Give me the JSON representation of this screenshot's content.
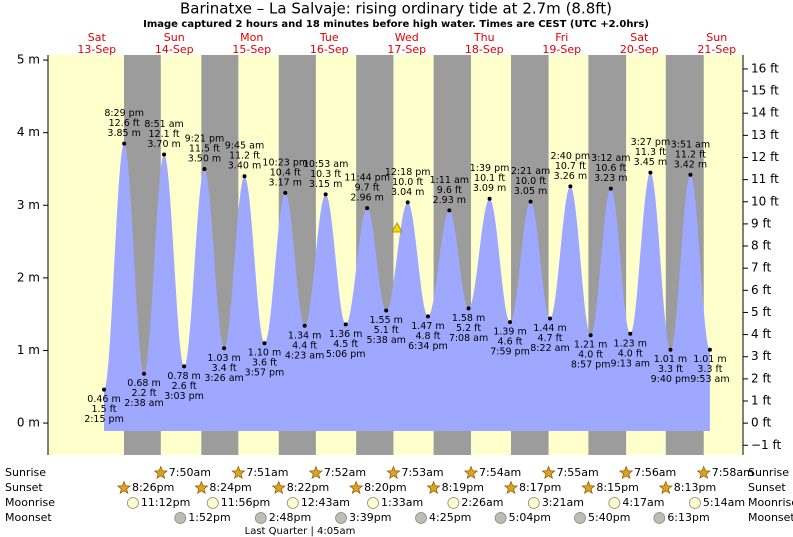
{
  "chart_data": {
    "type": "tide",
    "title": "Barinatxe – La Salvaje: rising  ordinary tide at 2.7m (8.8ft)",
    "subtitle": "Image captured 2 hours and 18 minutes before high water. Times are CEST (UTC +2.0hrs)",
    "ylim": [
      -0.44,
      5.07
    ],
    "yticks": [
      {
        "value": 0,
        "label": "0 m"
      },
      {
        "value": 1,
        "label": "1 m"
      },
      {
        "value": 2,
        "label": "2 m"
      },
      {
        "value": 3,
        "label": "3 m"
      },
      {
        "value": 4,
        "label": "4 m"
      },
      {
        "value": 5,
        "label": "5 m"
      }
    ],
    "y2lim": [
      -1.44,
      16.63
    ],
    "y2ticks": [
      {
        "value": -1,
        "label": "−1 ft"
      },
      {
        "value": 0,
        "label": "0 ft"
      },
      {
        "value": 1,
        "label": "1 ft"
      },
      {
        "value": 2,
        "label": "2 ft"
      },
      {
        "value": 3,
        "label": "3 ft"
      },
      {
        "value": 4,
        "label": "4 ft"
      },
      {
        "value": 5,
        "label": "5 ft"
      },
      {
        "value": 6,
        "label": "6 ft"
      },
      {
        "value": 7,
        "label": "7 ft"
      },
      {
        "value": 8,
        "label": "8 ft"
      },
      {
        "value": 9,
        "label": "9 ft"
      },
      {
        "value": 10,
        "label": "10 ft"
      },
      {
        "value": 11,
        "label": "11 ft"
      },
      {
        "value": 12,
        "label": "12 ft"
      },
      {
        "value": 13,
        "label": "13 ft"
      },
      {
        "value": 14,
        "label": "14 ft"
      },
      {
        "value": 15,
        "label": "15 ft"
      },
      {
        "value": 16,
        "label": "16 ft"
      }
    ],
    "row_labels": [
      "Sunrise",
      "Sunset",
      "Moonrise",
      "Moonset"
    ],
    "moon_phase": "Last Quarter | 4:05am",
    "colors": {
      "day": "#ffffcc",
      "night": "#9c9c9c",
      "tide": "#9ea8ff"
    },
    "days": [
      {
        "name": "Sat",
        "date": "13-Sep",
        "sunset": "8:26pm",
        "moonrise": "11:12pm",
        "tides": [
          {
            "time": "2:15 pm",
            "m": 0.46,
            "m_label": "0.46 m",
            "ft_label": "1.5 ft"
          },
          {
            "time": "8:29 pm",
            "m": 3.85,
            "m_label": "3.85 m",
            "ft_label": "12.6 ft"
          }
        ]
      },
      {
        "name": "Sun",
        "date": "14-Sep",
        "sunrise": "7:50am",
        "sunset": "8:24pm",
        "moonrise": "11:56pm",
        "moonset": "1:52pm",
        "tides": [
          {
            "time": "2:38 am",
            "m": 0.68,
            "m_label": "0.68 m",
            "ft_label": "2.2 ft"
          },
          {
            "time": "8:51 am",
            "m": 3.7,
            "m_label": "3.70 m",
            "ft_label": "12.1 ft"
          },
          {
            "time": "3:03 pm",
            "m": 0.78,
            "m_label": "0.78 m",
            "ft_label": "2.6 ft"
          },
          {
            "time": "9:21 pm",
            "m": 3.5,
            "m_label": "3.50 m",
            "ft_label": "11.5 ft"
          }
        ]
      },
      {
        "name": "Mon",
        "date": "15-Sep",
        "sunrise": "7:51am",
        "sunset": "8:22pm",
        "moonset": "2:48pm",
        "tides": [
          {
            "time": "3:26 am",
            "m": 1.03,
            "m_label": "1.03 m",
            "ft_label": "3.4 ft"
          },
          {
            "time": "9:45 am",
            "m": 3.4,
            "m_label": "3.40 m",
            "ft_label": "11.2 ft"
          },
          {
            "time": "3:57 pm",
            "m": 1.1,
            "m_label": "1.10 m",
            "ft_label": "3.6 ft"
          },
          {
            "time": "10:23 pm",
            "m": 3.17,
            "m_label": "3.17 m",
            "ft_label": "10.4 ft"
          }
        ]
      },
      {
        "name": "Tue",
        "date": "16-Sep",
        "sunrise": "7:52am",
        "sunset": "8:20pm",
        "moonrise": "12:43am",
        "moonset": "3:39pm",
        "tides": [
          {
            "time": "4:23 am",
            "m": 1.34,
            "m_label": "1.34 m",
            "ft_label": "4.4 ft"
          },
          {
            "time": "10:53 am",
            "m": 3.15,
            "m_label": "3.15 m",
            "ft_label": "10.3 ft"
          },
          {
            "time": "5:06 pm",
            "m": 1.36,
            "m_label": "1.36 m",
            "ft_label": "4.5 ft"
          },
          {
            "time": "11:44 pm",
            "m": 2.96,
            "m_label": "2.96 m",
            "ft_label": "9.7 ft"
          }
        ]
      },
      {
        "name": "Wed",
        "date": "17-Sep",
        "sunrise": "7:53am",
        "sunset": "8:19pm",
        "moonrise": "1:33am",
        "moonset": "4:25pm",
        "tides": [
          {
            "time": "5:38 am",
            "m": 1.55,
            "m_label": "1.55 m",
            "ft_label": "5.1 ft"
          },
          {
            "time": "12:18 pm",
            "m": 3.04,
            "m_label": "3.04 m",
            "ft_label": "10.0 ft"
          },
          {
            "time": "6:34 pm",
            "m": 1.47,
            "m_label": "1.47 m",
            "ft_label": "4.8 ft"
          }
        ]
      },
      {
        "name": "Thu",
        "date": "18-Sep",
        "sunrise": "7:54am",
        "sunset": "8:17pm",
        "moonrise": "2:26am",
        "moonset": "5:04pm",
        "tides": [
          {
            "time": "1:11 am",
            "m": 2.93,
            "m_label": "2.93 m",
            "ft_label": "9.6 ft"
          },
          {
            "time": "7:08 am",
            "m": 1.58,
            "m_label": "1.58 m",
            "ft_label": "5.2 ft"
          },
          {
            "time": "1:39 pm",
            "m": 3.09,
            "m_label": "3.09 m",
            "ft_label": "10.1 ft"
          },
          {
            "time": "7:59 pm",
            "m": 1.39,
            "m_label": "1.39 m",
            "ft_label": "4.6 ft"
          }
        ]
      },
      {
        "name": "Fri",
        "date": "19-Sep",
        "sunrise": "7:55am",
        "sunset": "8:15pm",
        "moonrise": "3:21am",
        "moonset": "5:40pm",
        "tides": [
          {
            "time": "2:21 am",
            "m": 3.05,
            "m_label": "3.05 m",
            "ft_label": "10.0 ft"
          },
          {
            "time": "8:22 am",
            "m": 1.44,
            "m_label": "1.44 m",
            "ft_label": "4.7 ft"
          },
          {
            "time": "2:40 pm",
            "m": 3.26,
            "m_label": "3.26 m",
            "ft_label": "10.7 ft"
          },
          {
            "time": "8:57 pm",
            "m": 1.21,
            "m_label": "1.21 m",
            "ft_label": "4.0 ft"
          }
        ]
      },
      {
        "name": "Sat",
        "date": "20-Sep",
        "sunrise": "7:56am",
        "sunset": "8:13pm",
        "moonrise": "4:17am",
        "moonset": "6:13pm",
        "tides": [
          {
            "time": "3:12 am",
            "m": 3.23,
            "m_label": "3.23 m",
            "ft_label": "10.6 ft"
          },
          {
            "time": "9:13 am",
            "m": 1.23,
            "m_label": "1.23 m",
            "ft_label": "4.0 ft"
          },
          {
            "time": "3:27 pm",
            "m": 3.45,
            "m_label": "3.45 m",
            "ft_label": "11.3 ft"
          },
          {
            "time": "9:40 pm",
            "m": 1.01,
            "m_label": "1.01 m",
            "ft_label": "3.3 ft"
          }
        ]
      },
      {
        "name": "Sun",
        "date": "21-Sep",
        "sunrise": "7:58am",
        "moonrise": "5:14am",
        "tides": [
          {
            "time": "3:51 am",
            "m": 3.42,
            "m_label": "3.42 m",
            "ft_label": "11.2 ft"
          },
          {
            "time": "9:53 am",
            "m": 1.01,
            "m_label": "1.01 m",
            "ft_label": "3.3 ft"
          }
        ]
      }
    ]
  }
}
